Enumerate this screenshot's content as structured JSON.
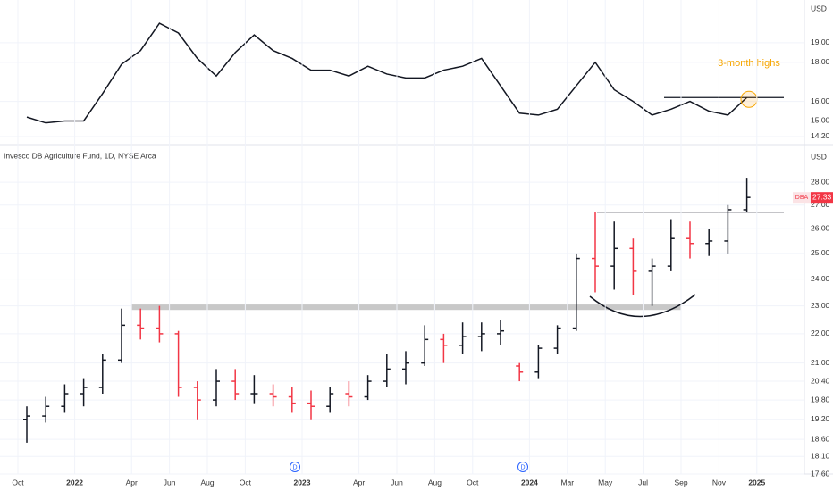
{
  "chart_data": [
    {
      "type": "line",
      "axis_label": "USD",
      "annotation": "3-month highs",
      "level": 16.2,
      "ylim": [
        13.88,
        21.19
      ],
      "yticks": [
        {
          "value": 14.2,
          "label": "14.20"
        },
        {
          "value": 15,
          "label": "15.00"
        },
        {
          "value": 16,
          "label": "16.00"
        },
        {
          "value": 18,
          "label": "18.00"
        },
        {
          "value": 19,
          "label": "19.00"
        }
      ],
      "grid": true,
      "color": "#131722",
      "x": [
        "2021-10",
        "2021-11",
        "2021-12",
        "2022-01",
        "2022-02",
        "2022-03",
        "2022-04",
        "2022-05",
        "2022-06",
        "2022-07",
        "2022-08",
        "2022-09",
        "2022-10",
        "2022-11",
        "2022-12",
        "2023-01",
        "2023-02",
        "2023-03",
        "2023-04",
        "2023-05",
        "2023-06",
        "2023-07",
        "2023-08",
        "2023-09",
        "2023-10",
        "2023-11",
        "2023-12",
        "2024-01",
        "2024-02",
        "2024-03",
        "2024-04",
        "2024-05",
        "2024-06",
        "2024-07",
        "2024-08",
        "2024-09",
        "2024-10",
        "2024-11",
        "2024-12"
      ],
      "values": [
        15.2,
        14.9,
        15.0,
        15.0,
        16.4,
        17.9,
        18.6,
        20.0,
        19.5,
        18.2,
        17.3,
        18.5,
        19.4,
        18.6,
        18.2,
        17.6,
        17.6,
        17.3,
        17.8,
        17.4,
        17.2,
        17.2,
        17.6,
        17.8,
        18.2,
        16.8,
        15.4,
        15.3,
        15.6,
        16.8,
        18.0,
        16.6,
        16.0,
        15.3,
        15.6,
        16.0,
        15.5,
        15.3,
        16.2
      ]
    },
    {
      "type": "ohlc",
      "title": "Invesco DB Agriculture Fund, 1D, NYSE Arca",
      "axis_label": "USD",
      "symbol": "DBA",
      "last_price": 27.33,
      "last_price_label": "27.33",
      "log_scale": true,
      "level": 26.7,
      "zone": [
        22.85,
        23.05
      ],
      "ylim": [
        17.6,
        29.6
      ],
      "yticks": [
        {
          "value": 17.6,
          "label": "17.60"
        },
        {
          "value": 18.1,
          "label": "18.10"
        },
        {
          "value": 18.6,
          "label": "18.60"
        },
        {
          "value": 19.2,
          "label": "19.20"
        },
        {
          "value": 19.8,
          "label": "19.80"
        },
        {
          "value": 20.4,
          "label": "20.40"
        },
        {
          "value": 21,
          "label": "21.00"
        },
        {
          "value": 22,
          "label": "22.00"
        },
        {
          "value": 23,
          "label": "23.00"
        },
        {
          "value": 24,
          "label": "24.00"
        },
        {
          "value": 25,
          "label": "25.00"
        },
        {
          "value": 26,
          "label": "26.00"
        },
        {
          "value": 27,
          "label": "27.00"
        },
        {
          "value": 28,
          "label": "28.00"
        }
      ],
      "grid": true,
      "up_color": "#131722",
      "down_color": "#f23645",
      "x": [
        "2021-10",
        "2021-11",
        "2021-12",
        "2022-01",
        "2022-02",
        "2022-03",
        "2022-04",
        "2022-05",
        "2022-06",
        "2022-07",
        "2022-08",
        "2022-09",
        "2022-10",
        "2022-11",
        "2022-12",
        "2023-01",
        "2023-02",
        "2023-03",
        "2023-04",
        "2023-05",
        "2023-06",
        "2023-07",
        "2023-08",
        "2023-09",
        "2023-10",
        "2023-11",
        "2023-12",
        "2024-01",
        "2024-02",
        "2024-03",
        "2024-04",
        "2024-05",
        "2024-06",
        "2024-07",
        "2024-08",
        "2024-09",
        "2024-10",
        "2024-11",
        "2024-12"
      ],
      "open": [
        19.2,
        19.3,
        19.6,
        20.0,
        20.2,
        21.1,
        22.3,
        22.2,
        22.0,
        20.2,
        19.8,
        20.4,
        20.0,
        20.0,
        19.9,
        19.7,
        19.6,
        20.0,
        19.9,
        20.4,
        20.8,
        21.0,
        21.8,
        21.6,
        21.9,
        22.0,
        20.9,
        20.7,
        21.5,
        22.2,
        24.8,
        24.5,
        25.2,
        24.3,
        24.5,
        25.6,
        25.4,
        25.5,
        26.8
      ],
      "high": [
        19.6,
        19.9,
        20.3,
        20.5,
        21.3,
        22.9,
        22.9,
        23.0,
        22.1,
        20.4,
        20.8,
        20.8,
        20.6,
        20.3,
        20.2,
        20.1,
        20.2,
        20.4,
        20.6,
        21.3,
        21.4,
        22.3,
        22.0,
        22.4,
        22.4,
        22.5,
        21.0,
        21.6,
        22.3,
        25.0,
        26.7,
        26.3,
        25.6,
        24.8,
        26.4,
        26.3,
        26.0,
        27.0,
        28.2
      ],
      "low": [
        18.5,
        19.1,
        19.4,
        19.6,
        20.0,
        21.0,
        21.8,
        21.7,
        19.9,
        19.2,
        19.6,
        19.8,
        19.7,
        19.6,
        19.4,
        19.2,
        19.4,
        19.6,
        19.8,
        20.2,
        20.3,
        20.9,
        21.0,
        21.3,
        21.4,
        21.6,
        20.4,
        20.5,
        21.3,
        22.1,
        23.5,
        23.6,
        23.4,
        23.0,
        24.3,
        24.8,
        24.9,
        25.0,
        26.7
      ],
      "close": [
        19.3,
        19.6,
        20.0,
        20.2,
        21.1,
        22.3,
        22.2,
        22.0,
        20.2,
        19.8,
        20.4,
        20.0,
        20.0,
        19.9,
        19.7,
        19.6,
        20.0,
        19.9,
        20.4,
        20.8,
        21.0,
        21.8,
        21.6,
        21.9,
        22.0,
        22.1,
        20.7,
        21.5,
        22.2,
        24.8,
        24.5,
        25.2,
        24.3,
        24.5,
        25.6,
        25.4,
        25.5,
        26.8,
        27.33
      ],
      "xticks": [
        {
          "value": "2021-10",
          "label": "Oct"
        },
        {
          "value": "2022-01",
          "label": "2022"
        },
        {
          "value": "2022-04",
          "label": "Apr"
        },
        {
          "value": "2022-06",
          "label": "Jun"
        },
        {
          "value": "2022-08",
          "label": "Aug"
        },
        {
          "value": "2022-10",
          "label": "Oct"
        },
        {
          "value": "2023-01",
          "label": "2023"
        },
        {
          "value": "2023-04",
          "label": "Apr"
        },
        {
          "value": "2023-06",
          "label": "Jun"
        },
        {
          "value": "2023-08",
          "label": "Aug"
        },
        {
          "value": "2023-10",
          "label": "Oct"
        },
        {
          "value": "2024-01",
          "label": "2024"
        },
        {
          "value": "2024-03",
          "label": "Mar"
        },
        {
          "value": "2024-05",
          "label": "May"
        },
        {
          "value": "2024-07",
          "label": "Jul"
        },
        {
          "value": "2024-09",
          "label": "Sep"
        },
        {
          "value": "2024-11",
          "label": "Nov"
        },
        {
          "value": "2025-01",
          "label": "2025"
        }
      ],
      "events": [
        "D",
        "D"
      ]
    }
  ]
}
